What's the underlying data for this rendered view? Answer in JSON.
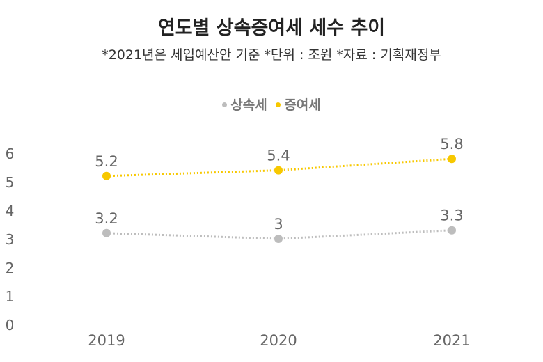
{
  "chart_data": {
    "type": "line",
    "title": "연도별 상속증여세 세수 추이",
    "subtitle": "*2021년은 세입예산안 기준 *단위 : 조원 *자료 : 기획재정부",
    "categories": [
      "2019",
      "2020",
      "2021"
    ],
    "series": [
      {
        "name": "상속세",
        "values": [
          3.2,
          3,
          3.3
        ],
        "labels": [
          "3.2",
          "3",
          "3.3"
        ],
        "color": "#bdbdbd"
      },
      {
        "name": "증여세",
        "values": [
          5.2,
          5.4,
          5.8
        ],
        "labels": [
          "5.2",
          "5.4",
          "5.8"
        ],
        "color": "#f7c800"
      }
    ],
    "yticks": [
      "0",
      "1",
      "2",
      "3",
      "4",
      "5",
      "6"
    ],
    "ylim": [
      0,
      6
    ],
    "grid": false,
    "legend": "top-center",
    "line_style": "dotted"
  }
}
